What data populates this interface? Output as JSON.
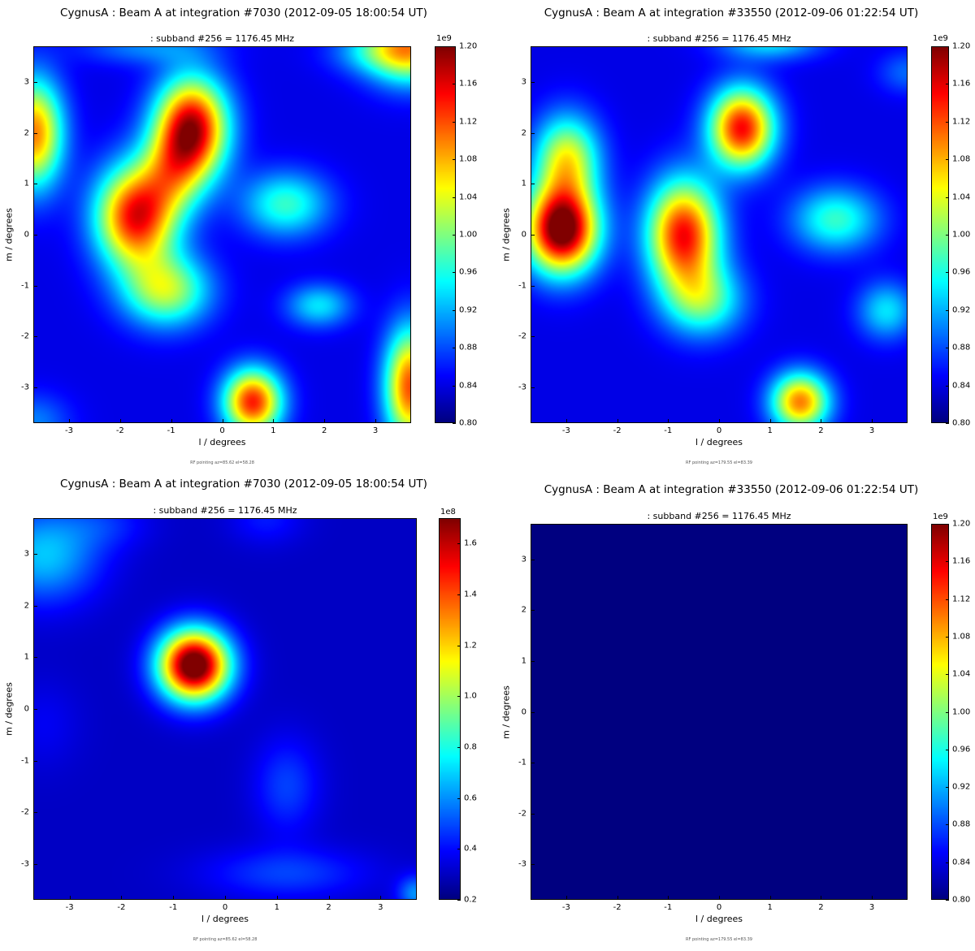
{
  "chart_data": [
    {
      "type": "heatmap",
      "title": "CygnusA : Beam A at integration #7030 (2012-09-05 18:00:54 UT)",
      "subtitle": ":  subband #256 = 1176.45 MHz",
      "xlabel": "l / degrees",
      "ylabel": "m / degrees",
      "xlim": [
        -3.7,
        3.7
      ],
      "ylim": [
        -3.7,
        3.7
      ],
      "xticks": [
        "-3",
        "-2",
        "-1",
        "0",
        "1",
        "2",
        "3"
      ],
      "yticks": [
        "3",
        "2",
        "1",
        "0",
        "-1",
        "-2",
        "-3"
      ],
      "colorbar": {
        "multiplier": "1e9",
        "min": 0.8,
        "max": 1.2,
        "ticks": [
          "1.20",
          "1.16",
          "1.12",
          "1.08",
          "1.04",
          "1.00",
          "0.96",
          "0.92",
          "0.88",
          "0.84",
          "0.80"
        ],
        "colormap": "jet"
      },
      "field": {
        "base": 0.84,
        "blobs": [
          {
            "l": -0.6,
            "m": 2.1,
            "amp": 0.34,
            "sl": 0.5,
            "sm": 0.7
          },
          {
            "l": -1.7,
            "m": 0.35,
            "amp": 0.31,
            "sl": 0.55,
            "sm": 0.7
          },
          {
            "l": -1.0,
            "m": 1.2,
            "amp": 0.12,
            "sl": 0.45,
            "sm": 0.6
          },
          {
            "l": -1.1,
            "m": -1.1,
            "amp": 0.18,
            "sl": 0.6,
            "sm": 0.5
          },
          {
            "l": 1.25,
            "m": 0.6,
            "amp": 0.13,
            "sl": 0.6,
            "sm": 0.45
          },
          {
            "l": 1.9,
            "m": -1.4,
            "amp": 0.1,
            "sl": 0.45,
            "sm": 0.3
          },
          {
            "l": 0.6,
            "m": -3.3,
            "amp": 0.3,
            "sl": 0.4,
            "sm": 0.45
          },
          {
            "l": -3.7,
            "m": 2.0,
            "amp": 0.26,
            "sl": 0.4,
            "sm": 0.75
          },
          {
            "l": 3.7,
            "m": -3.0,
            "amp": 0.28,
            "sl": 0.35,
            "sm": 0.8
          },
          {
            "l": 3.7,
            "m": 3.7,
            "amp": 0.24,
            "sl": 0.6,
            "sm": 0.5
          },
          {
            "l": 2.9,
            "m": 3.6,
            "amp": 0.06,
            "sl": 0.6,
            "sm": 0.3
          },
          {
            "l": -1.5,
            "m": 3.7,
            "amp": 0.06,
            "sl": 0.9,
            "sm": 0.25
          },
          {
            "l": -3.7,
            "m": -3.7,
            "amp": 0.06,
            "sl": 0.5,
            "sm": 0.4
          }
        ]
      },
      "footnote": "RF pointing az=85.62 el=58.28"
    },
    {
      "type": "heatmap",
      "title": "CygnusA : Beam A at integration #33550 (2012-09-06 01:22:54 UT)",
      "subtitle": ":  subband #256 = 1176.45 MHz",
      "xlabel": "l / degrees",
      "ylabel": "m / degrees",
      "xlim": [
        -3.7,
        3.7
      ],
      "ylim": [
        -3.7,
        3.7
      ],
      "xticks": [
        "-3",
        "-2",
        "-1",
        "0",
        "1",
        "2",
        "3"
      ],
      "yticks": [
        "3",
        "2",
        "1",
        "0",
        "-1",
        "-2",
        "-3"
      ],
      "colorbar": {
        "multiplier": "1e9",
        "min": 0.8,
        "max": 1.2,
        "ticks": [
          "1.20",
          "1.16",
          "1.12",
          "1.08",
          "1.04",
          "1.00",
          "0.96",
          "0.92",
          "0.88",
          "0.84",
          "0.80"
        ],
        "colormap": "jet"
      },
      "field": {
        "base": 0.84,
        "blobs": [
          {
            "l": -3.1,
            "m": 0.1,
            "amp": 0.39,
            "sl": 0.5,
            "sm": 0.6
          },
          {
            "l": -3.0,
            "m": 1.5,
            "amp": 0.2,
            "sl": 0.45,
            "sm": 0.6
          },
          {
            "l": -0.7,
            "m": 0.0,
            "amp": 0.31,
            "sl": 0.5,
            "sm": 0.75
          },
          {
            "l": -0.3,
            "m": -1.3,
            "amp": 0.14,
            "sl": 0.55,
            "sm": 0.5
          },
          {
            "l": 0.45,
            "m": 2.1,
            "amp": 0.31,
            "sl": 0.45,
            "sm": 0.55
          },
          {
            "l": 2.3,
            "m": 0.3,
            "amp": 0.13,
            "sl": 0.6,
            "sm": 0.45
          },
          {
            "l": 1.6,
            "m": -3.3,
            "amp": 0.26,
            "sl": 0.4,
            "sm": 0.4
          },
          {
            "l": 3.3,
            "m": -1.5,
            "amp": 0.1,
            "sl": 0.4,
            "sm": 0.4
          },
          {
            "l": 1.0,
            "m": 3.8,
            "amp": 0.1,
            "sl": 0.7,
            "sm": 0.25
          },
          {
            "l": 3.7,
            "m": 3.2,
            "amp": 0.05,
            "sl": 0.4,
            "sm": 0.3
          }
        ]
      },
      "footnote": "RF pointing az=179.55 el=83.39"
    },
    {
      "type": "heatmap",
      "title": "CygnusA : Beam A at integration #7030 (2012-09-05 18:00:54 UT)",
      "subtitle": ":  subband #256 = 1176.45 MHz",
      "xlabel": "l / degrees",
      "ylabel": "m / degrees",
      "xlim": [
        -3.7,
        3.7
      ],
      "ylim": [
        -3.7,
        3.7
      ],
      "xticks": [
        "-3",
        "-2",
        "-1",
        "0",
        "1",
        "2",
        "3"
      ],
      "yticks": [
        "3",
        "2",
        "1",
        "0",
        "-1",
        "-2",
        "-3"
      ],
      "colorbar": {
        "multiplier": "1e8",
        "min": 0.2,
        "max": 1.7,
        "ticks": [
          "1.6",
          "1.4",
          "1.2",
          "1.0",
          "0.8",
          "0.6",
          "0.4",
          "0.2"
        ],
        "tick_values": [
          1.6,
          1.4,
          1.2,
          1.0,
          0.8,
          0.6,
          0.4,
          0.2
        ],
        "colormap": "jet"
      },
      "field": {
        "base": 0.3,
        "blobs": [
          {
            "l": -0.6,
            "m": 0.85,
            "amp": 1.55,
            "sl": 0.48,
            "sm": 0.48
          },
          {
            "l": -3.5,
            "m": 3.0,
            "amp": 0.38,
            "sl": 0.75,
            "sm": 0.65
          },
          {
            "l": -2.3,
            "m": 3.6,
            "amp": 0.12,
            "sl": 0.6,
            "sm": 0.35
          },
          {
            "l": 0.8,
            "m": 3.7,
            "amp": 0.12,
            "sl": 0.5,
            "sm": 0.35
          },
          {
            "l": 1.2,
            "m": -1.5,
            "amp": 0.18,
            "sl": 0.45,
            "sm": 0.65
          },
          {
            "l": 1.2,
            "m": -3.2,
            "amp": 0.18,
            "sl": 1.1,
            "sm": 0.35
          },
          {
            "l": -3.5,
            "m": -0.3,
            "amp": 0.07,
            "sl": 0.5,
            "sm": 0.6
          },
          {
            "l": 3.7,
            "m": -3.6,
            "amp": 0.3,
            "sl": 0.25,
            "sm": 0.25
          }
        ]
      },
      "footnote": "RF pointing az=85.62 el=58.28"
    },
    {
      "type": "heatmap",
      "title": "CygnusA : Beam A at integration #33550 (2012-09-06 01:22:54 UT)",
      "subtitle": ":  subband #256 = 1176.45 MHz",
      "xlabel": "l / degrees",
      "ylabel": "m / degrees",
      "xlim": [
        -3.7,
        3.7
      ],
      "ylim": [
        -3.7,
        3.7
      ],
      "xticks": [
        "-3",
        "-2",
        "-1",
        "0",
        "1",
        "2",
        "3"
      ],
      "yticks": [
        "3",
        "2",
        "1",
        "0",
        "-1",
        "-2",
        "-3"
      ],
      "colorbar": {
        "multiplier": "1e9",
        "min": 0.8,
        "max": 1.2,
        "ticks": [
          "1.20",
          "1.16",
          "1.12",
          "1.08",
          "1.04",
          "1.00",
          "0.96",
          "0.92",
          "0.88",
          "0.84",
          "0.80"
        ],
        "colormap": "jet"
      },
      "field": {
        "base": 0.8,
        "blobs": []
      },
      "footnote": "RF pointing az=179.55 el=83.39"
    }
  ]
}
